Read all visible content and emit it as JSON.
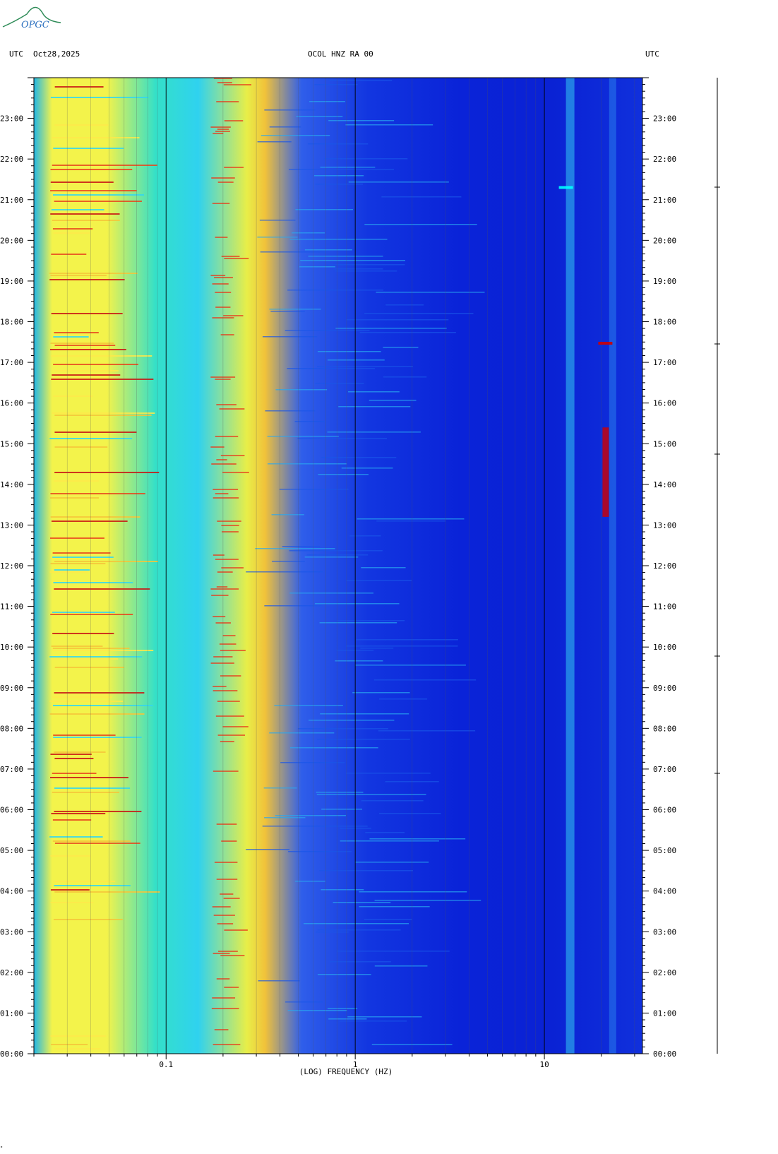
{
  "header": {
    "left_label": "UTC",
    "date": "Oct28,2025",
    "station": "OCOL HNZ RA 00",
    "right_label": "UTC"
  },
  "logo": {
    "text": "OPGC",
    "color": "#2e8b57"
  },
  "colors": {
    "low": "#0000d8",
    "mid": "#00ffff",
    "high": "#ffff00",
    "peak": "#d00000"
  },
  "chart_data": {
    "type": "heatmap",
    "xlabel": "(LOG) FREQUENCY (HZ)",
    "x_scale": "log",
    "xlim": [
      0.02,
      33
    ],
    "x_ticks": [
      {
        "value": 0.1,
        "label": "0.1"
      },
      {
        "value": 1,
        "label": "1"
      },
      {
        "value": 10,
        "label": "10"
      }
    ],
    "ylim_hours": [
      0,
      24
    ],
    "y_ticks": [
      "00:00",
      "01:00",
      "02:00",
      "03:00",
      "04:00",
      "05:00",
      "06:00",
      "07:00",
      "08:00",
      "09:00",
      "10:00",
      "11:00",
      "12:00",
      "13:00",
      "14:00",
      "15:00",
      "16:00",
      "17:00",
      "18:00",
      "19:00",
      "20:00",
      "21:00",
      "22:00",
      "23:00"
    ],
    "events": [
      {
        "start_hour": 17.47,
        "freq_hz": 21,
        "level": "peak"
      },
      {
        "start_hour": 13.2,
        "end_hour": 15.4,
        "freq_hz": 21,
        "level": "peak"
      },
      {
        "start_hour": 21.3,
        "freq_hz": 13,
        "level": "mid"
      }
    ]
  },
  "corner_mark": "\""
}
